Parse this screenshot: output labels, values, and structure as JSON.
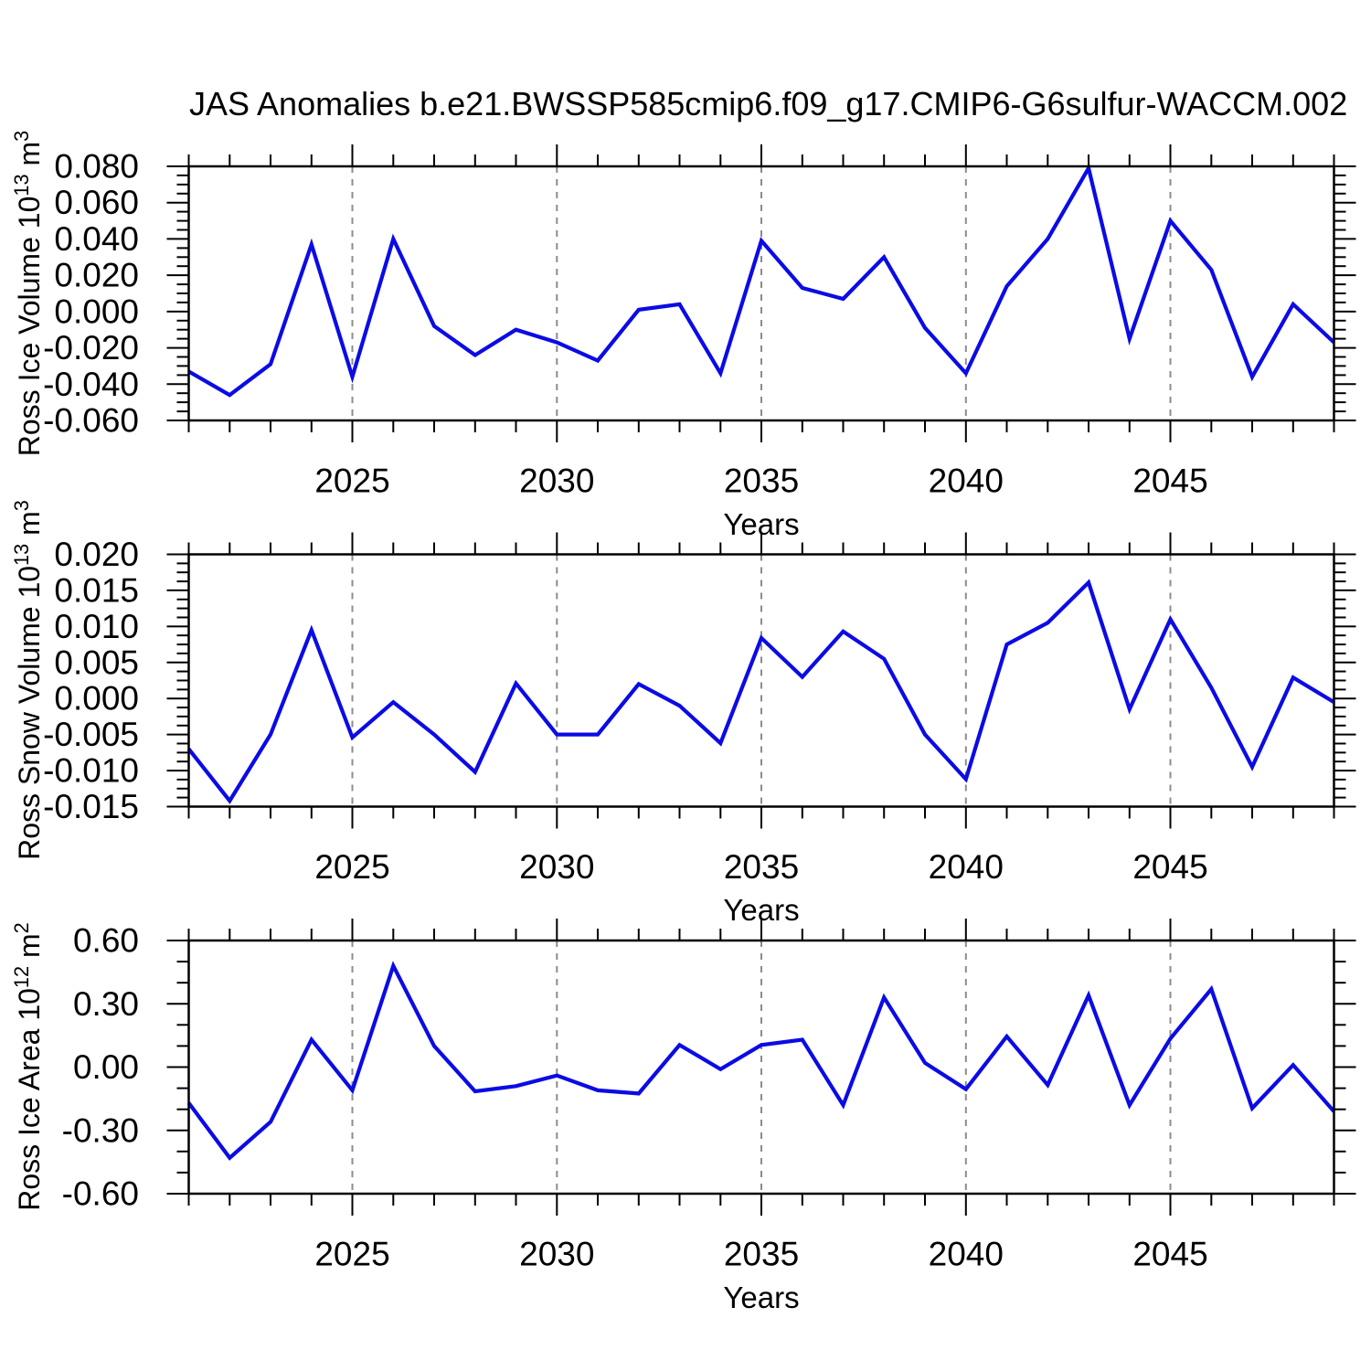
{
  "title": "JAS Anomalies b.e21.BWSSP585cmip6.f09_g17.CMIP6-G6sulfur-WACCM.002",
  "figure": {
    "background": "#ffffff",
    "line_color": "#0b0be6",
    "grid_color": "#8c8c8c",
    "axis_color": "#000000"
  },
  "chart_data": [
    {
      "type": "line",
      "ylabel": "Ross Ice Volume 10^13 m^3",
      "ylabel_parts": {
        "pre": "Ross Ice Volume 10",
        "sup1": "13",
        "mid": " m",
        "sup2": "3"
      },
      "xlabel": "Years",
      "x": [
        2021,
        2022,
        2023,
        2024,
        2025,
        2026,
        2027,
        2028,
        2029,
        2030,
        2031,
        2032,
        2033,
        2034,
        2035,
        2036,
        2037,
        2038,
        2039,
        2040,
        2041,
        2042,
        2043,
        2044,
        2045,
        2046,
        2047,
        2048,
        2049
      ],
      "values": [
        -0.033,
        -0.046,
        -0.029,
        0.037,
        -0.036,
        0.04,
        -0.008,
        -0.024,
        -0.01,
        -0.017,
        -0.027,
        0.001,
        0.004,
        -0.034,
        0.039,
        0.013,
        0.007,
        0.03,
        -0.009,
        -0.034,
        0.014,
        0.04,
        0.079,
        -0.015,
        0.05,
        0.023,
        -0.036,
        0.004,
        -0.017
      ],
      "xlim": [
        2021,
        2049
      ],
      "ylim": [
        -0.06,
        0.08
      ],
      "xticks": [
        2025,
        2030,
        2035,
        2040,
        2045
      ],
      "xtick_labels": [
        "2025",
        "2030",
        "2035",
        "2040",
        "2045"
      ],
      "xminor_step": 1,
      "yticks": [
        0.08,
        0.06,
        0.04,
        0.02,
        0.0,
        -0.02,
        -0.04,
        -0.06
      ],
      "ytick_labels": [
        "0.080",
        "0.060",
        "0.040",
        "0.020",
        "0.000",
        "-0.020",
        "-0.040",
        "-0.060"
      ],
      "yminor_step": 0.005,
      "grid": "dashed vertical lines at major x ticks",
      "legend": "none"
    },
    {
      "type": "line",
      "ylabel": "Ross Snow Volume 10^13 m^3",
      "ylabel_parts": {
        "pre": "Ross Snow Volume 10",
        "sup1": "13",
        "mid": " m",
        "sup2": "3"
      },
      "xlabel": "Years",
      "x": [
        2021,
        2022,
        2023,
        2024,
        2025,
        2026,
        2027,
        2028,
        2029,
        2030,
        2031,
        2032,
        2033,
        2034,
        2035,
        2036,
        2037,
        2038,
        2039,
        2040,
        2041,
        2042,
        2043,
        2044,
        2045,
        2046,
        2047,
        2048,
        2049
      ],
      "values": [
        -0.007,
        -0.0142,
        -0.005,
        0.0095,
        -0.0054,
        -0.0005,
        -0.005,
        -0.0102,
        0.0021,
        -0.005,
        -0.005,
        0.002,
        -0.001,
        -0.0062,
        0.0084,
        0.003,
        0.0093,
        0.0055,
        -0.005,
        -0.0112,
        0.0075,
        0.0105,
        0.0161,
        -0.0015,
        0.011,
        0.0015,
        -0.0095,
        0.0029,
        -0.0005
      ],
      "xlim": [
        2021,
        2049
      ],
      "ylim": [
        -0.015,
        0.02
      ],
      "xticks": [
        2025,
        2030,
        2035,
        2040,
        2045
      ],
      "xtick_labels": [
        "2025",
        "2030",
        "2035",
        "2040",
        "2045"
      ],
      "xminor_step": 1,
      "yticks": [
        0.02,
        0.015,
        0.01,
        0.005,
        0.0,
        -0.005,
        -0.01,
        -0.015
      ],
      "ytick_labels": [
        "0.020",
        "0.015",
        "0.010",
        "0.005",
        "0.000",
        "-0.005",
        "-0.010",
        "-0.015"
      ],
      "yminor_step": 0.00125,
      "grid": "dashed vertical lines at major x ticks",
      "legend": "none"
    },
    {
      "type": "line",
      "ylabel": "Ross Ice Area 10^12 m^2",
      "ylabel_parts": {
        "pre": "Ross Ice Area 10",
        "sup1": "12",
        "mid": " m",
        "sup2": "2"
      },
      "xlabel": "Years",
      "x": [
        2021,
        2022,
        2023,
        2024,
        2025,
        2026,
        2027,
        2028,
        2029,
        2030,
        2031,
        2032,
        2033,
        2034,
        2035,
        2036,
        2037,
        2038,
        2039,
        2040,
        2041,
        2042,
        2043,
        2044,
        2045,
        2046,
        2047,
        2048,
        2049
      ],
      "values": [
        -0.17,
        -0.43,
        -0.26,
        0.13,
        -0.11,
        0.48,
        0.1,
        -0.115,
        -0.09,
        -0.04,
        -0.11,
        -0.125,
        0.105,
        -0.01,
        0.105,
        0.13,
        -0.18,
        0.33,
        0.02,
        -0.105,
        0.145,
        -0.085,
        0.34,
        -0.18,
        0.135,
        0.37,
        -0.195,
        0.01,
        -0.21
      ],
      "xlim": [
        2021,
        2049
      ],
      "ylim": [
        -0.6,
        0.6
      ],
      "xticks": [
        2025,
        2030,
        2035,
        2040,
        2045
      ],
      "xtick_labels": [
        "2025",
        "2030",
        "2035",
        "2040",
        "2045"
      ],
      "xminor_step": 1,
      "yticks": [
        0.6,
        0.3,
        0.0,
        -0.3,
        -0.6
      ],
      "ytick_labels": [
        "0.60",
        "0.30",
        "0.00",
        "-0.30",
        "-0.60"
      ],
      "yminor_step": 0.1,
      "grid": "dashed vertical lines at major x ticks",
      "legend": "none"
    }
  ]
}
